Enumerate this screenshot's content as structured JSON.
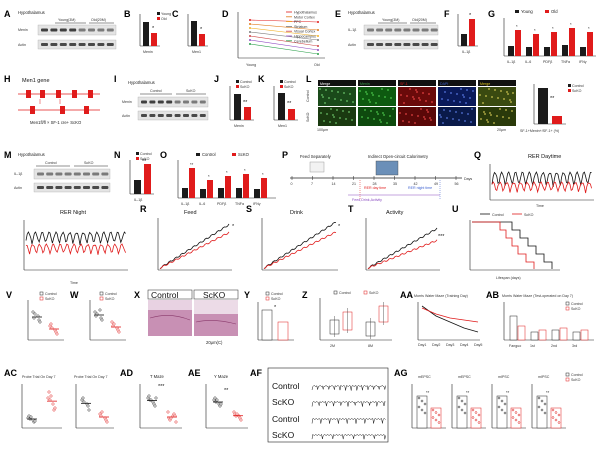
{
  "panels": [
    "A",
    "B",
    "C",
    "D",
    "E",
    "F",
    "G",
    "H",
    "I",
    "J",
    "K",
    "L",
    "M",
    "N",
    "O",
    "P",
    "Q",
    "R",
    "S",
    "T",
    "U",
    "V",
    "W",
    "X",
    "Y",
    "Z",
    "AA",
    "AB",
    "AC",
    "AD",
    "AE",
    "AF",
    "AG"
  ],
  "legend": {
    "young": "Young",
    "old": "Old",
    "control": "Control",
    "sckO": "ScKO",
    "d_items": [
      "Hypothalamus",
      "Motor Cortex",
      "PFC",
      "Striatum",
      "Visual Cortex",
      "Hippocampus",
      "Cerebellum"
    ]
  },
  "blots": {
    "a_title": "Hypothalamus",
    "a_young": "Young(3M)",
    "a_old": "Old(20M)",
    "a_row": "Menin",
    "a_row2": "Actin",
    "e_title": "Hypothalamus",
    "e_young": "Young(3M)",
    "e_old": "Old(20M)",
    "e_row": "IL-1β",
    "e_row2": "Actin",
    "i_title": "Hypothalamus",
    "i_ctrl": "Control",
    "i_ko": "ScKO",
    "i_row": "Menin",
    "i_row2": "Actin",
    "m_title": "Hypothalamus",
    "m_ctrl": "Control",
    "m_ko": "ScKO",
    "m_row": "IL-1β",
    "m_row2": "Actin"
  },
  "axes": {
    "b_x": "Menin",
    "c_x": "Men1",
    "d_x1": "Young",
    "d_x2": "Old",
    "f_x": "IL-1β",
    "g_x": [
      "IL-1β",
      "IL-6",
      "PDFβ",
      "TNFα",
      "IFNγ"
    ],
    "j_x": "Menin",
    "k_x": "Men1",
    "n_x": "IL-1β",
    "o_x": [
      "IL-1β",
      "IL-6",
      "PDFβ",
      "TNFα",
      "IFNγ"
    ],
    "wm_x": [
      "Day1",
      "Day2",
      "Day3",
      "Day4",
      "Day5"
    ],
    "ab_x": [
      "Fanguo",
      "1st",
      "2nd",
      "3rd"
    ],
    "z_x": [
      "2M",
      "8M"
    ]
  },
  "genes": {
    "h_title": "Men1 gene",
    "h_cross": "Men1fl/fl × SF-1 cre+ ScKO"
  },
  "panel_l": {
    "heads": [
      "Merge",
      "Menin",
      "SF-1",
      "DAPI",
      "Merge"
    ],
    "rows": [
      "Control",
      "ScKO"
    ],
    "scale1": "100μm",
    "scale2": "20μm",
    "y_label": "SF-1+Menin+/SF-1+ (%)"
  },
  "panel_p": {
    "left": "Feed Separately",
    "right": "Indirect Open-circuit Calorimetry",
    "ticks": [
      "0",
      "7",
      "14",
      "21",
      "28",
      "35",
      "42",
      "49",
      "56"
    ],
    "unit": "Days",
    "rer_day": "RER day time",
    "rer_night": "RER night time",
    "feed": "Feed,Drink,Activity"
  },
  "titles": {
    "q": "RER Daytime",
    "rn": "RER Night",
    "r": "Feed",
    "s": "Drink",
    "t": "Activity",
    "aa": "Morris Water Maze (Training Day)",
    "ab": "Morris Water Maze (Test-operated on Day 7)",
    "ac1": "Probe Trial On Day 7",
    "ac2": "Probe Trial On Day 7",
    "ad": "T Maze",
    "ae": "Y Maze",
    "ag": [
      "mEPSC",
      "mEPSC",
      "mIPSC",
      "mIPSC"
    ]
  },
  "axis_labels": {
    "q_x": "Time",
    "r_y": "Feed (g)",
    "s_y": "Drink (mL)",
    "t_y": "Activity (m)",
    "u_x": "Lifespan (days)",
    "u_y": "Survival (%)",
    "v_y": "Muscle Mass (mg)",
    "w_y": "Bone Mass (BMD)",
    "y_y": "Dermal Thickness",
    "z_y": "Tendon Break (mm)",
    "aa_y": "Latency to Target (sec)",
    "ab_y": "Time in Zone (%)",
    "ac1_y": "Latency 1st Entrance to Target (sec)",
    "ac2_y": "Target Crossings",
    "ad_y": "Alternation Triplet (%)",
    "ae_y": "Alternation Triplet (%)",
    "ag_y": [
      "Amplitude (pA)",
      "Frequency (Hz)",
      "Amplitude (pA)",
      "Frequency (Hz)"
    ]
  },
  "panel_x": {
    "ctrl": "Control",
    "ko": "ScKO",
    "scale": "20μm(C)"
  },
  "panel_af": {
    "rows": [
      "Control",
      "ScKO",
      "Control",
      "ScKO"
    ]
  },
  "sig": {
    "b": "*",
    "c": "*",
    "f": "*",
    "n": "**",
    "j": "**",
    "k": "**",
    "r": "*",
    "s": "*",
    "t": "***",
    "u": "**",
    "y": "*",
    "ad": "***",
    "ae": "**"
  },
  "colors": {
    "young": "#1b1b1b",
    "old": "#e01b1b",
    "control": "#1b1b1b",
    "sckO": "#e01b1b"
  }
}
